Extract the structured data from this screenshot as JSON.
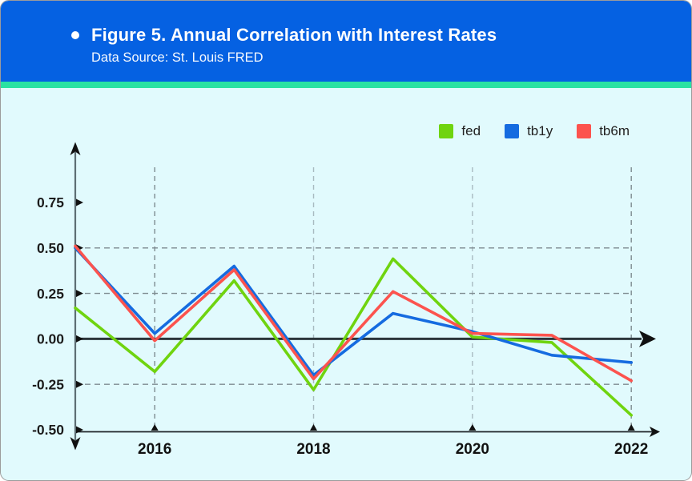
{
  "header": {
    "title": "Figure 5. Annual Correlation with Interest Rates",
    "subtitle": "Data Source: St. Louis FRED",
    "background_color": "#0561e2",
    "accent_strip_color": "#2be2a2"
  },
  "legend": {
    "position": "top-right",
    "items": [
      {
        "label": "fed",
        "color": "#6fd40f"
      },
      {
        "label": "tb1y",
        "color": "#156be0"
      },
      {
        "label": "tb6m",
        "color": "#fc534e"
      }
    ]
  },
  "chart_data": {
    "type": "line",
    "title": "Figure 5. Annual Correlation with Interest Rates",
    "xlabel": "",
    "ylabel": "",
    "x": [
      2015,
      2016,
      2017,
      2018,
      2019,
      2020,
      2021,
      2022
    ],
    "series": [
      {
        "name": "fed",
        "color": "#6fd40f",
        "values": [
          0.17,
          -0.18,
          0.32,
          -0.28,
          0.44,
          0.01,
          -0.02,
          -0.42
        ]
      },
      {
        "name": "tb1y",
        "color": "#156be0",
        "values": [
          0.5,
          0.03,
          0.4,
          -0.2,
          0.14,
          0.04,
          -0.09,
          -0.13
        ]
      },
      {
        "name": "tb6m",
        "color": "#fc534e",
        "values": [
          0.51,
          -0.01,
          0.38,
          -0.22,
          0.26,
          0.03,
          0.02,
          -0.23
        ]
      }
    ],
    "ylim": [
      -0.62,
      1.05
    ],
    "y_ticks": [
      0.75,
      0.5,
      0.25,
      0.0,
      -0.25,
      -0.5
    ],
    "y_tick_labels": [
      "0.75",
      "0.50",
      "0.25",
      "0.00",
      "-0.25",
      "-0.50"
    ],
    "x_tick_years": [
      2016,
      2018,
      2020,
      2022
    ],
    "x_tick_labels": [
      "2016",
      "2018",
      "2020",
      "2022"
    ],
    "h_gridlines_at": [
      0.5,
      0.25,
      -0.25
    ],
    "grid": "dashed",
    "zero_line": true,
    "legend_position": "top-right",
    "background_color": "#e1fafd"
  }
}
